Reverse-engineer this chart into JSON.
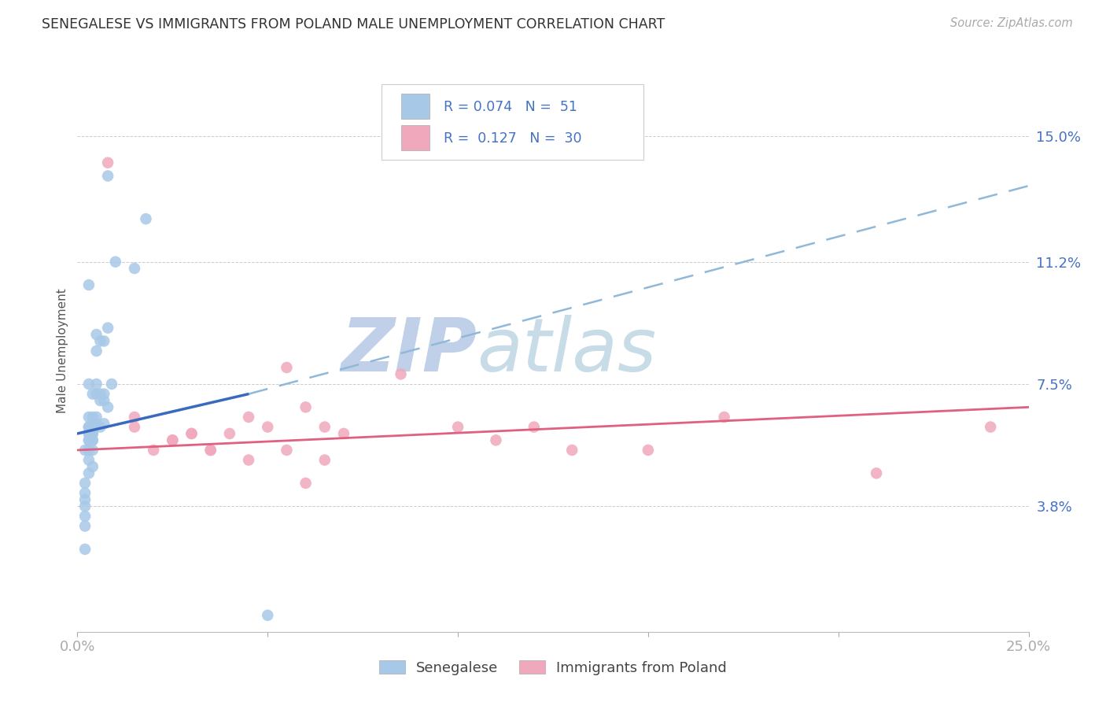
{
  "title": "SENEGALESE VS IMMIGRANTS FROM POLAND MALE UNEMPLOYMENT CORRELATION CHART",
  "source": "Source: ZipAtlas.com",
  "ylabel": "Male Unemployment",
  "ytick_labels": [
    "3.8%",
    "7.5%",
    "11.2%",
    "15.0%"
  ],
  "ytick_values": [
    3.8,
    7.5,
    11.2,
    15.0
  ],
  "xlim": [
    0.0,
    25.0
  ],
  "ylim": [
    0.0,
    17.0
  ],
  "color_blue": "#a8c8e8",
  "color_blue_line": "#3a6abf",
  "color_blue_dashed": "#90b8d8",
  "color_pink": "#f0a8bc",
  "color_pink_line": "#e06080",
  "color_text_blue": "#4472c4",
  "watermark_zip": "#c8d8f0",
  "watermark_atlas": "#c8d8e8",
  "senegalese_x": [
    0.8,
    1.8,
    1.0,
    1.5,
    0.3,
    0.5,
    0.5,
    0.6,
    0.7,
    0.8,
    0.3,
    0.4,
    0.5,
    0.5,
    0.6,
    0.6,
    0.7,
    0.7,
    0.8,
    0.9,
    0.3,
    0.4,
    0.4,
    0.5,
    0.5,
    0.6,
    0.7,
    0.3,
    0.4,
    0.3,
    0.4,
    0.3,
    0.4,
    0.4,
    0.3,
    0.3,
    0.4,
    0.3,
    0.2,
    0.3,
    0.3,
    0.4,
    0.3,
    0.2,
    0.2,
    0.2,
    0.2,
    0.2,
    0.2,
    0.2,
    5.0
  ],
  "senegalese_y": [
    13.8,
    12.5,
    11.2,
    11.0,
    10.5,
    9.0,
    8.5,
    8.8,
    8.8,
    9.2,
    7.5,
    7.2,
    7.5,
    7.2,
    7.0,
    7.2,
    7.0,
    7.2,
    6.8,
    7.5,
    6.5,
    6.5,
    6.2,
    6.3,
    6.5,
    6.2,
    6.3,
    6.2,
    6.0,
    5.8,
    5.8,
    6.0,
    5.8,
    5.5,
    6.2,
    6.0,
    6.0,
    5.8,
    5.5,
    5.5,
    5.2,
    5.0,
    4.8,
    4.5,
    4.2,
    4.0,
    3.8,
    3.5,
    3.2,
    2.5,
    0.5
  ],
  "poland_x": [
    0.8,
    5.5,
    1.5,
    2.5,
    3.0,
    3.5,
    4.5,
    5.0,
    6.0,
    6.5,
    7.0,
    8.5,
    10.0,
    11.0,
    12.0,
    13.0,
    15.0,
    17.0,
    21.0,
    24.0,
    1.5,
    2.0,
    2.5,
    3.0,
    3.5,
    4.0,
    4.5,
    5.5,
    6.0,
    6.5
  ],
  "poland_y": [
    14.2,
    8.0,
    6.5,
    5.8,
    6.0,
    5.5,
    6.5,
    6.2,
    6.8,
    6.2,
    6.0,
    7.8,
    6.2,
    5.8,
    6.2,
    5.5,
    5.5,
    6.5,
    4.8,
    6.2,
    6.2,
    5.5,
    5.8,
    6.0,
    5.5,
    6.0,
    5.2,
    5.5,
    4.5,
    5.2
  ],
  "blue_line_x0": 0.0,
  "blue_line_y0": 6.0,
  "blue_line_x1": 4.5,
  "blue_line_y1": 7.2,
  "blue_dash_x0": 4.5,
  "blue_dash_y0": 7.2,
  "blue_dash_x1": 25.0,
  "blue_dash_y1": 13.5,
  "pink_line_x0": 0.0,
  "pink_line_y0": 5.5,
  "pink_line_x1": 25.0,
  "pink_line_y1": 6.8
}
